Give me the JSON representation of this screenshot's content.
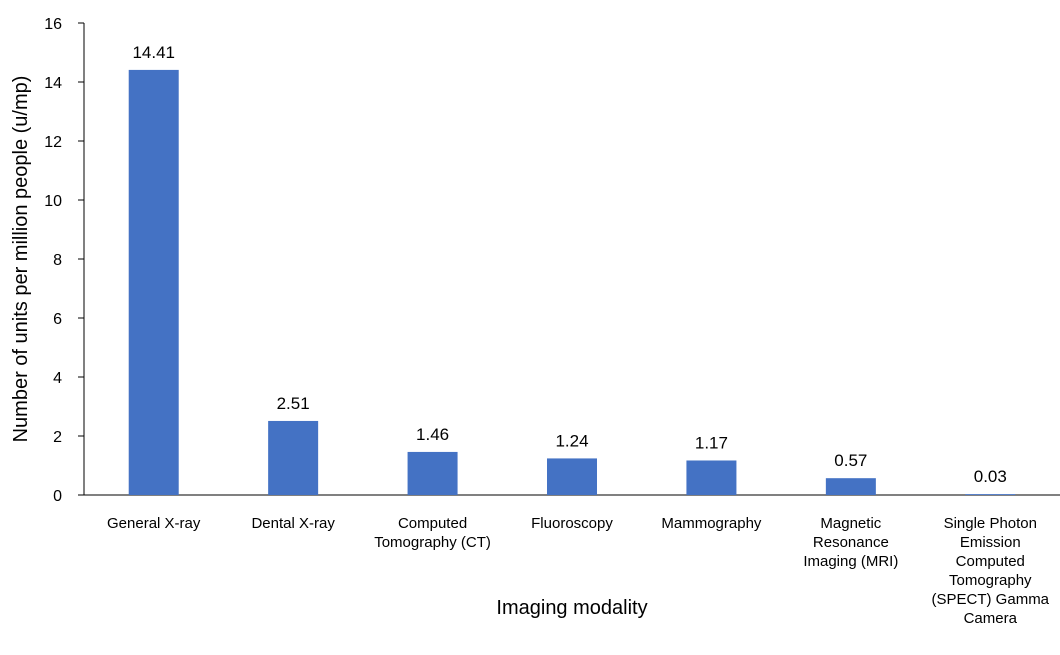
{
  "chart_data": {
    "type": "bar",
    "title": "",
    "xlabel": "Imaging modality",
    "ylabel": "Number of units per million people (u/mp)",
    "ylim": [
      0,
      16
    ],
    "yticks": [
      0,
      2,
      4,
      6,
      8,
      10,
      12,
      14,
      16
    ],
    "grid": false,
    "legend": "none",
    "bar_color": "#4472C4",
    "categories": [
      [
        "General X-ray"
      ],
      [
        "Dental X-ray"
      ],
      [
        "Computed",
        "Tomography (CT)"
      ],
      [
        "Fluoroscopy"
      ],
      [
        "Mammography"
      ],
      [
        "Magnetic",
        "Resonance",
        "Imaging (MRI)"
      ],
      [
        "Single Photon",
        "Emission",
        "Computed",
        "Tomography",
        "(SPECT) Gamma",
        "Camera"
      ]
    ],
    "values": [
      14.41,
      2.51,
      1.46,
      1.24,
      1.17,
      0.57,
      0.03
    ],
    "data_labels": [
      "14.41",
      "2.51",
      "1.46",
      "1.24",
      "1.17",
      "0.57",
      "0.03"
    ]
  }
}
